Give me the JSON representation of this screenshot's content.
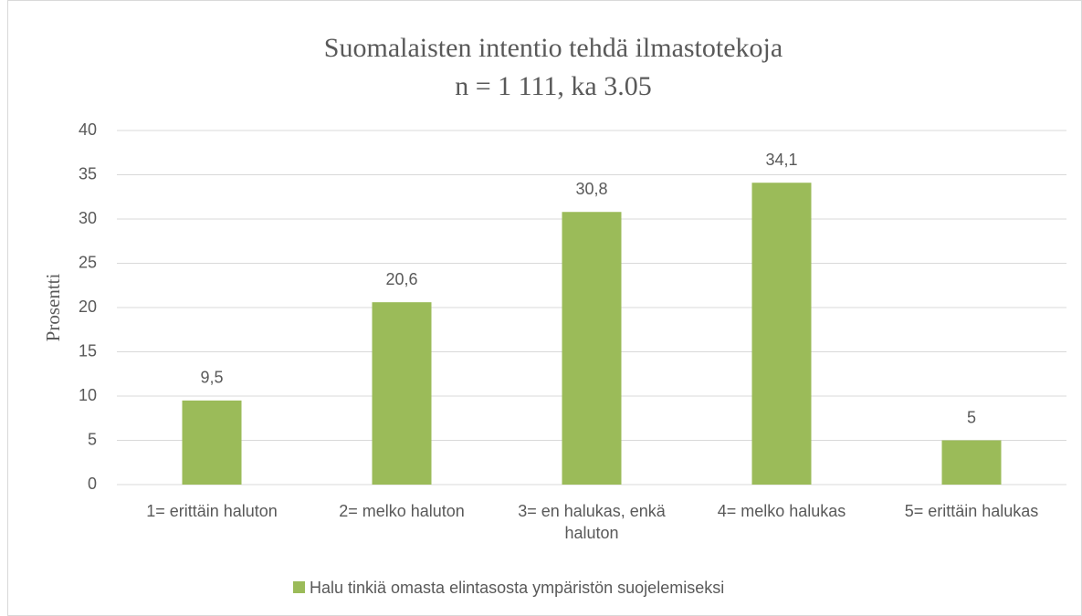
{
  "chart_data": {
    "type": "bar",
    "title": "Suomalaisten intentio tehdä ilmastotekoja",
    "subtitle": "n = 1 111, ka 3.05",
    "y_label": "Prosentti",
    "categories": [
      "1= erittäin haluton",
      "2= melko haluton",
      "3= en halukas, enkä haluton",
      "4= melko halukas",
      "5= erittäin halukas"
    ],
    "series": [
      {
        "name": "Halu tinkiä omasta elintasosta ympäristön suojelemiseksi",
        "color": "#9bbb59",
        "values": [
          9.5,
          20.6,
          30.8,
          34.1,
          5
        ],
        "value_labels": [
          "9,5",
          "20,6",
          "30,8",
          "34,1",
          "5"
        ]
      }
    ],
    "ylim": [
      0,
      40
    ],
    "yticks": [
      0,
      5,
      10,
      15,
      20,
      25,
      30,
      35,
      40
    ],
    "grid": true,
    "legend": "bottom"
  }
}
